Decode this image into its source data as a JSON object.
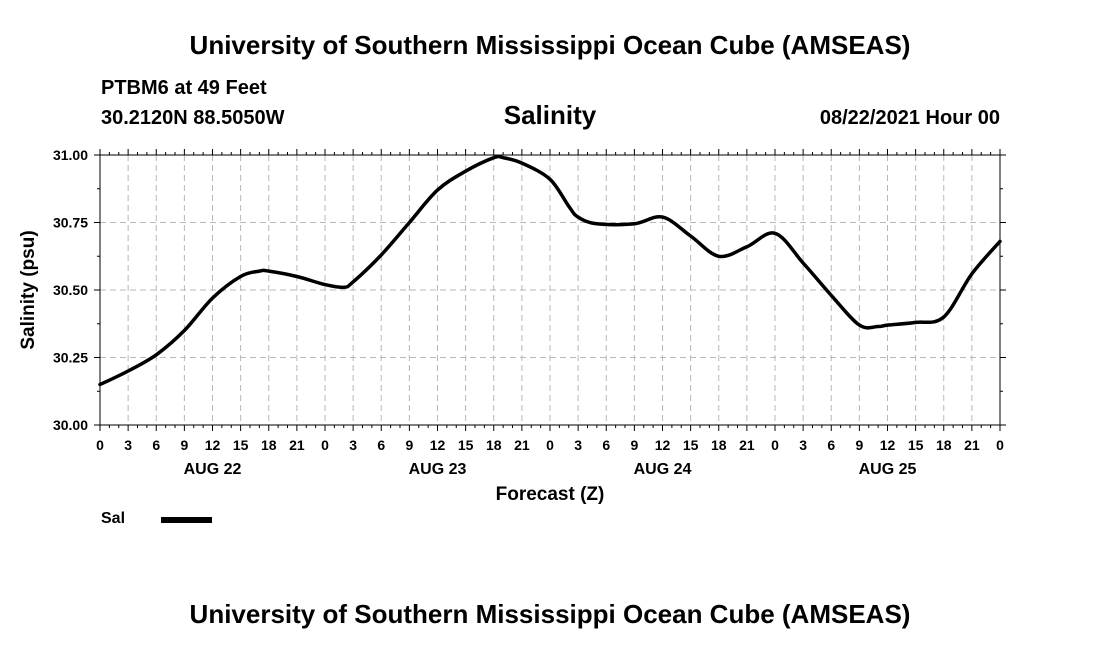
{
  "header": {
    "org_title": "University of Southern Mississippi Ocean Cube (AMSEAS)",
    "station": "PTBM6 at 49 Feet",
    "coordinates": "30.2120N  88.5050W",
    "datetime": "08/22/2021 Hour 00"
  },
  "footer": {
    "org_title": "University of Southern Mississippi Ocean Cube (AMSEAS)"
  },
  "legend": {
    "series_label": "Sal",
    "line_color": "#000000"
  },
  "chart_data": {
    "type": "line",
    "title": "Salinity",
    "xlabel": "Forecast (Z)",
    "ylabel": "Salinity (psu)",
    "ylim": [
      30.0,
      31.0
    ],
    "yticks": [
      30.0,
      30.25,
      30.5,
      30.75,
      31.0
    ],
    "ytick_labels": [
      "30.00",
      "30.25",
      "30.50",
      "30.75",
      "31.00"
    ],
    "xlim": [
      0,
      96
    ],
    "x_unit": "hours from 08/22/2021 00Z",
    "xtick_step_hours": 3,
    "xtick_labels": [
      "0",
      "3",
      "6",
      "9",
      "12",
      "15",
      "18",
      "21",
      "0",
      "3",
      "6",
      "9",
      "12",
      "15",
      "18",
      "21",
      "0",
      "3",
      "6",
      "9",
      "12",
      "15",
      "18",
      "21",
      "0",
      "3",
      "6",
      "9",
      "12",
      "15",
      "18",
      "21",
      "0"
    ],
    "day_labels": [
      {
        "label": "AUG 22",
        "hour": 12
      },
      {
        "label": "AUG 23",
        "hour": 36
      },
      {
        "label": "AUG 24",
        "hour": 60
      },
      {
        "label": "AUG 25",
        "hour": 84
      }
    ],
    "grid": true,
    "series": [
      {
        "name": "Sal",
        "x": [
          0,
          3,
          6,
          9,
          12,
          15,
          17,
          18,
          21,
          24,
          26,
          27,
          30,
          33,
          36,
          39,
          42,
          43,
          45,
          48,
          50,
          51,
          53,
          57,
          60,
          63,
          66,
          69,
          72,
          75,
          78,
          81,
          83,
          84,
          87,
          90,
          93,
          96
        ],
        "y": [
          30.15,
          30.2,
          30.26,
          30.35,
          30.47,
          30.55,
          30.57,
          30.57,
          30.55,
          30.52,
          30.51,
          30.53,
          30.63,
          30.75,
          30.87,
          30.94,
          30.99,
          30.99,
          30.97,
          30.91,
          30.81,
          30.77,
          30.745,
          30.745,
          30.77,
          30.7,
          30.625,
          30.66,
          30.71,
          30.6,
          30.48,
          30.37,
          30.365,
          30.37,
          30.38,
          30.4,
          30.56,
          30.68
        ]
      }
    ]
  }
}
